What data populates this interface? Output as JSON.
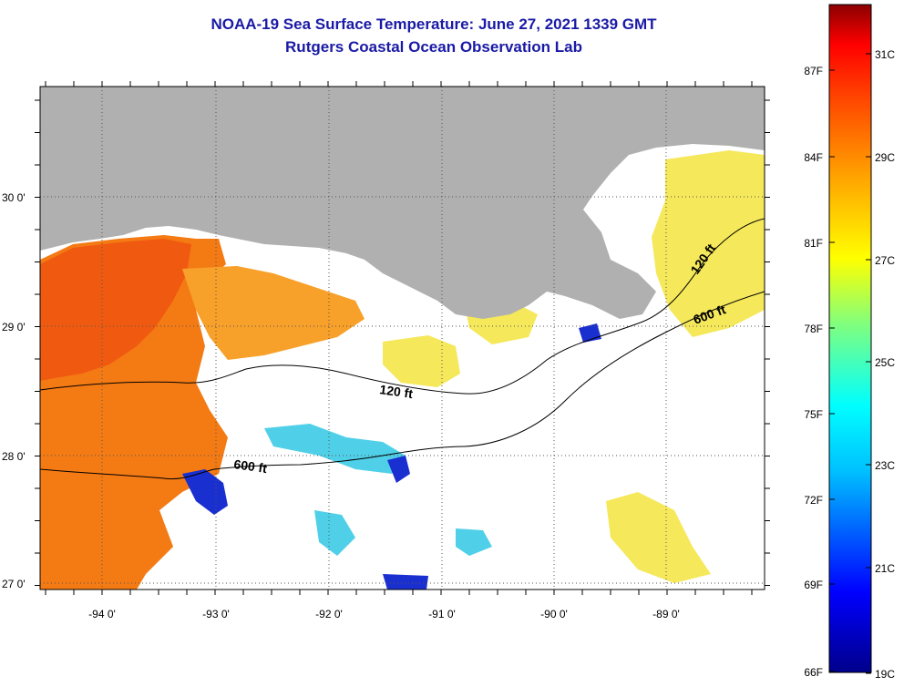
{
  "title": {
    "line1": "NOAA-19 Sea Surface Temperature:  June 27, 2021 1339 GMT",
    "line2": "Rutgers Coastal Ocean Observation Lab"
  },
  "axes": {
    "lon_labels": [
      "-94 0'",
      "-93 0'",
      "-92 0'",
      "-91 0'",
      "-90 0'",
      "-89 0'"
    ],
    "lat_labels": [
      "30 0'",
      "29 0'",
      "28 0'",
      "27 0'"
    ]
  },
  "contours": {
    "shallow_label": "120 ft",
    "deep_label": "600 ft"
  },
  "colorbar": {
    "fahrenheit": [
      "87F",
      "84F",
      "81F",
      "78F",
      "75F",
      "72F",
      "69F",
      "66F"
    ],
    "celsius": [
      "31C",
      "29C",
      "27C",
      "25C",
      "23C",
      "21C",
      "19C"
    ],
    "colors": [
      "#00008b",
      "#0000ff",
      "#00bfff",
      "#00ffff",
      "#7fff7f",
      "#ffff00",
      "#ffa500",
      "#ff4500",
      "#ff0000",
      "#8b0000"
    ]
  },
  "colors": {
    "land": "#b0b0b0",
    "warm_water": "#f47a14",
    "hot_water": "#f05a10",
    "mid_water": "#f7a02a",
    "yellow_water": "#f5e85a",
    "cyan_water": "#4fd0e8",
    "blue_water": "#1a2fd0"
  }
}
